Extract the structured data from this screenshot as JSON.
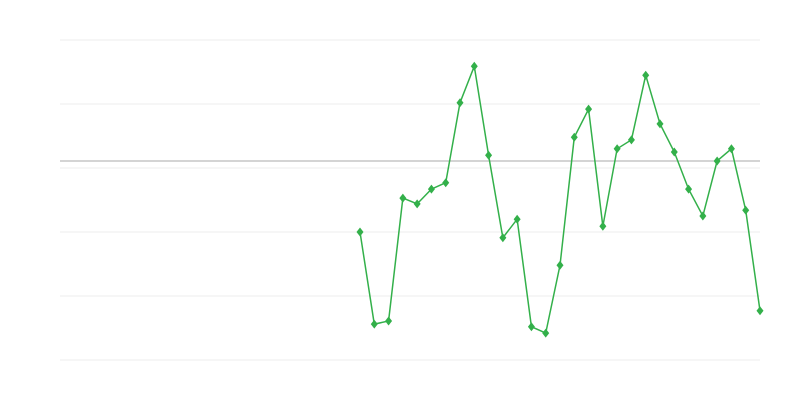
{
  "chart_data": {
    "type": "line",
    "title": "",
    "xlabel": "",
    "ylabel": "",
    "xlim": [
      0,
      49
    ],
    "ylim": [
      0,
      5
    ],
    "grid": true,
    "reference_line": 3.11,
    "colors": {
      "series": "#33b04a",
      "grid": "#eeeeee",
      "reference": "#aaaaaa"
    },
    "marker": "diamond",
    "series": [
      {
        "x": [
          21,
          22,
          23,
          24,
          25,
          26,
          27,
          28,
          29,
          30,
          31,
          32,
          33,
          34,
          35,
          36,
          37,
          38,
          39,
          40,
          41,
          42,
          43,
          44,
          45,
          46,
          47,
          48,
          49
        ],
        "values": [
          2.0,
          0.56,
          0.61,
          2.53,
          2.44,
          2.67,
          2.77,
          4.02,
          4.59,
          3.2,
          1.91,
          2.2,
          0.52,
          0.42,
          1.48,
          3.48,
          3.92,
          2.09,
          3.3,
          3.44,
          4.45,
          3.69,
          3.25,
          2.67,
          2.25,
          3.11,
          3.3,
          2.34,
          0.77
        ]
      }
    ]
  }
}
